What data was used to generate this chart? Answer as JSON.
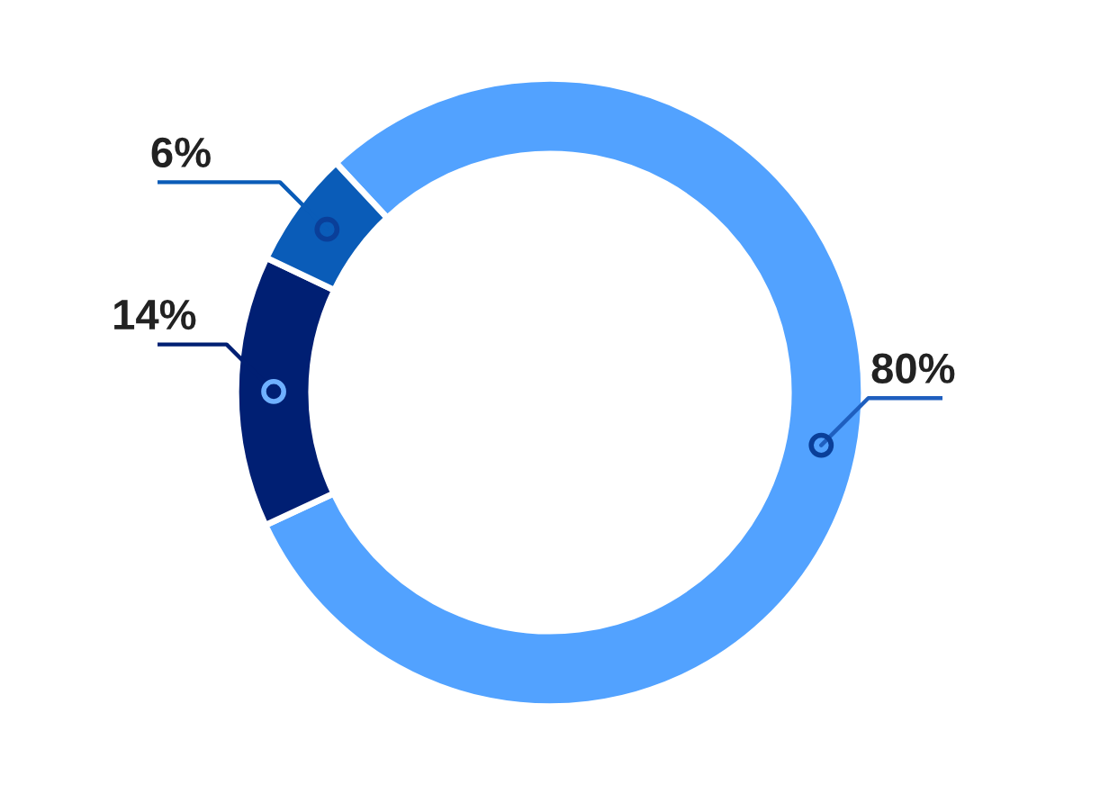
{
  "chart_data": {
    "type": "donut",
    "categories": [
      null,
      null,
      null
    ],
    "values": [
      80,
      14,
      6
    ],
    "colors": [
      "#52a2ff",
      "#001f73",
      "#0a5cb8"
    ],
    "value_labels": [
      "80%",
      "14%",
      "6%"
    ]
  }
}
